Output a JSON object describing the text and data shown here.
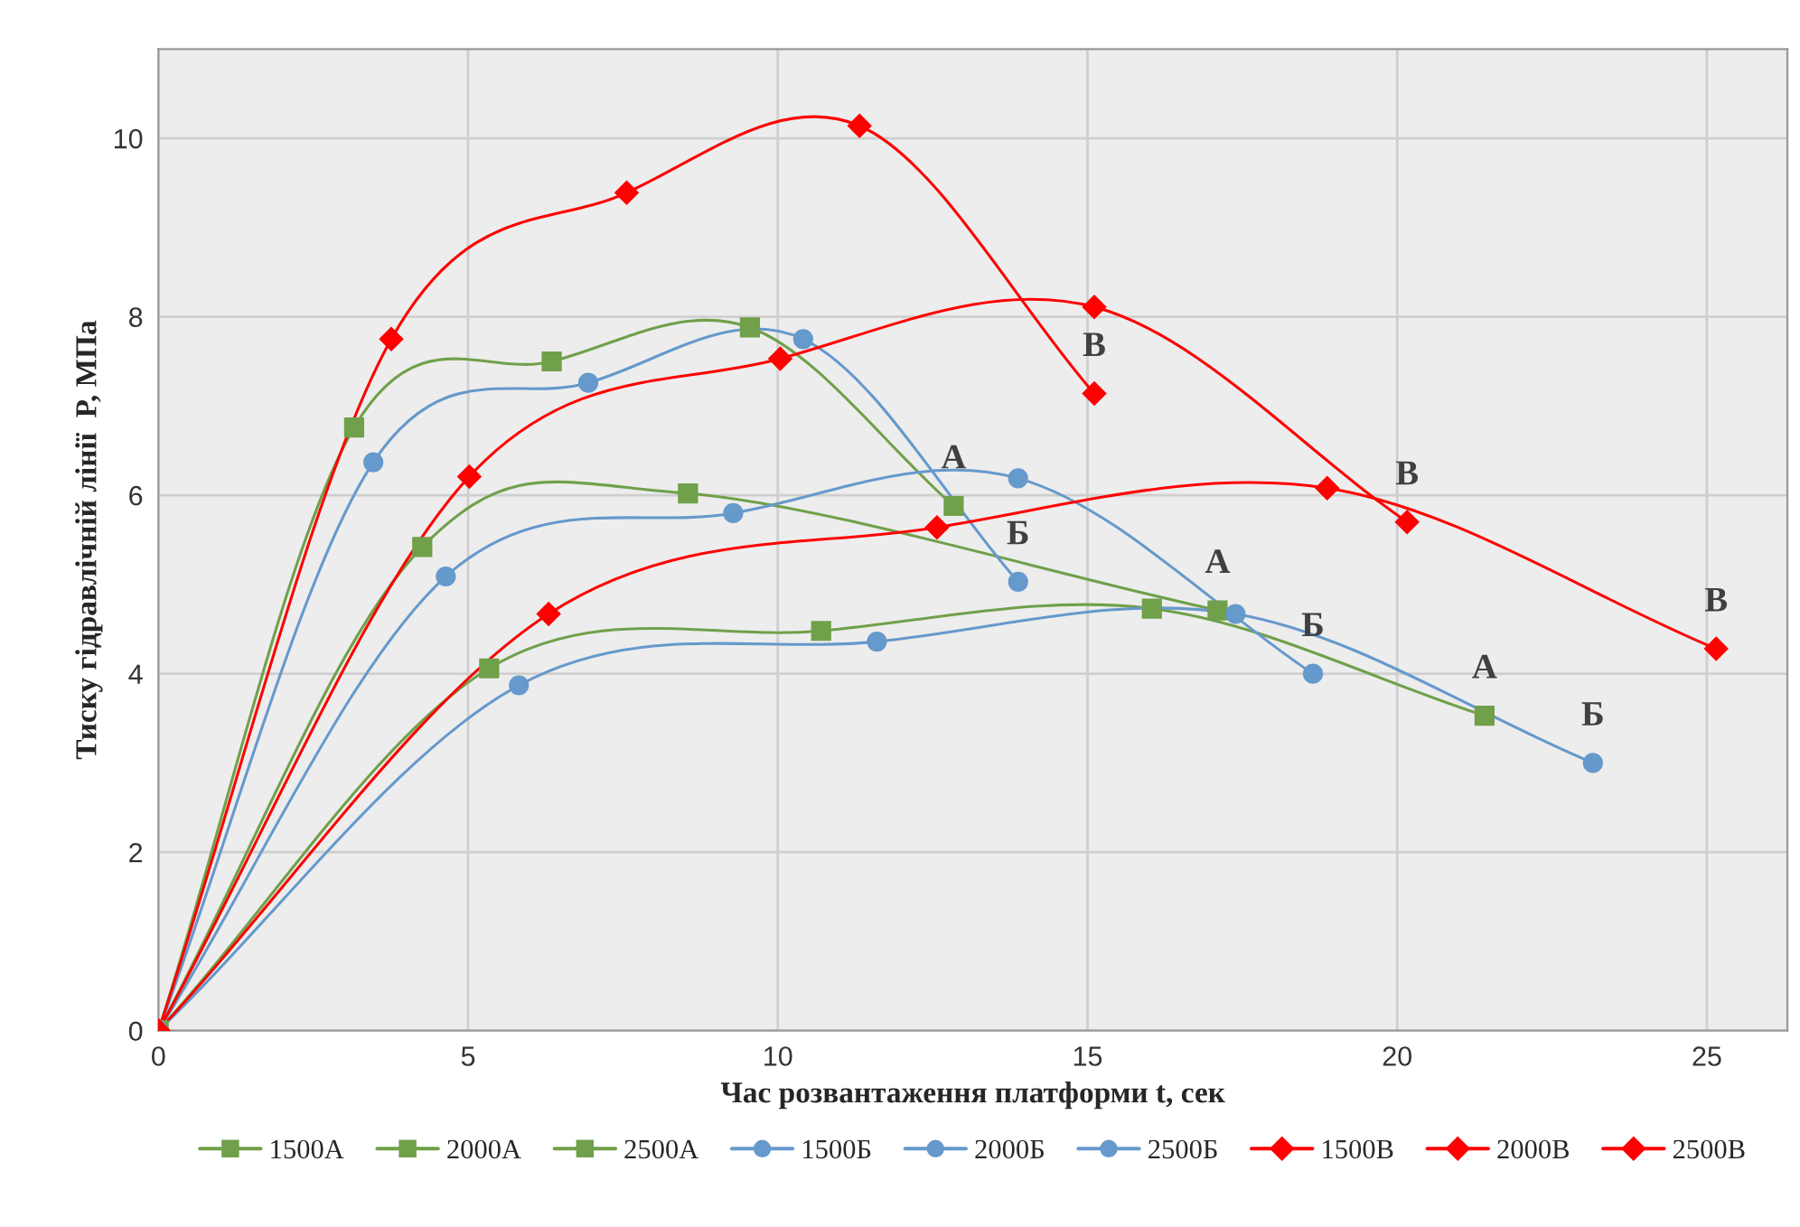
{
  "chart_data": {
    "type": "line",
    "xlabel": "Час розвантаження платформи t, сек",
    "ylabel": "Тиску гідравлічній лінії  P, МПа",
    "xlim": [
      0,
      26.3
    ],
    "ylim": [
      0,
      11
    ],
    "xticks": [
      0,
      5,
      10,
      15,
      20,
      25
    ],
    "yticks": [
      0,
      2,
      4,
      6,
      8,
      10
    ],
    "grid": true,
    "legend": "bottom",
    "line_style": "solid",
    "series": [
      {
        "name": "1500А",
        "color": "#70a04a",
        "marker": "square",
        "x": [
          0,
          3.16,
          6.35,
          9.55,
          12.84
        ],
        "values": [
          0,
          6.76,
          7.5,
          7.88,
          5.88
        ]
      },
      {
        "name": "2000А",
        "color": "#70a04a",
        "marker": "square",
        "x": [
          0,
          4.26,
          8.55,
          17.1
        ],
        "values": [
          0,
          5.42,
          6.02,
          4.71
        ]
      },
      {
        "name": "2500А",
        "color": "#70a04a",
        "marker": "square",
        "x": [
          0,
          5.34,
          10.7,
          16.04,
          21.41
        ],
        "values": [
          0,
          4.06,
          4.48,
          4.73,
          3.53
        ]
      },
      {
        "name": "1500Б",
        "color": "#6699cc",
        "marker": "circle",
        "x": [
          0,
          3.47,
          6.94,
          10.41,
          13.88
        ],
        "values": [
          0,
          6.37,
          7.26,
          7.75,
          5.03
        ]
      },
      {
        "name": "2000Б",
        "color": "#6699cc",
        "marker": "circle",
        "x": [
          0,
          4.64,
          9.28,
          13.88,
          18.64
        ],
        "values": [
          0,
          5.09,
          5.8,
          6.19,
          4.0
        ]
      },
      {
        "name": "2500Б",
        "color": "#6699cc",
        "marker": "circle",
        "x": [
          0,
          5.82,
          11.6,
          17.39,
          23.16
        ],
        "values": [
          0,
          3.87,
          4.36,
          4.67,
          3.0
        ]
      },
      {
        "name": "1500В",
        "color": "#ff0000",
        "marker": "diamond",
        "x": [
          0,
          3.76,
          7.56,
          11.32,
          15.11
        ],
        "values": [
          0,
          7.75,
          9.39,
          10.14,
          7.14
        ]
      },
      {
        "name": "2000В",
        "color": "#ff0000",
        "marker": "diamond",
        "x": [
          0,
          5.02,
          10.04,
          15.11,
          20.16
        ],
        "values": [
          0,
          6.21,
          7.53,
          8.11,
          5.7
        ]
      },
      {
        "name": "2500В",
        "color": "#ff0000",
        "marker": "diamond",
        "x": [
          0,
          6.3,
          12.57,
          18.87,
          25.15
        ],
        "values": [
          0,
          4.67,
          5.64,
          6.08,
          4.28
        ]
      }
    ],
    "annotations": [
      {
        "text": "А",
        "x": 12.84,
        "y": 5.88
      },
      {
        "text": "А",
        "x": 17.1,
        "y": 4.71
      },
      {
        "text": "А",
        "x": 21.41,
        "y": 3.53
      },
      {
        "text": "Б",
        "x": 13.88,
        "y": 5.03
      },
      {
        "text": "Б",
        "x": 18.64,
        "y": 4.0
      },
      {
        "text": "Б",
        "x": 23.16,
        "y": 3.0
      },
      {
        "text": "В",
        "x": 15.11,
        "y": 7.14
      },
      {
        "text": "В",
        "x": 20.16,
        "y": 5.7
      },
      {
        "text": "В",
        "x": 25.15,
        "y": 4.28
      }
    ]
  }
}
